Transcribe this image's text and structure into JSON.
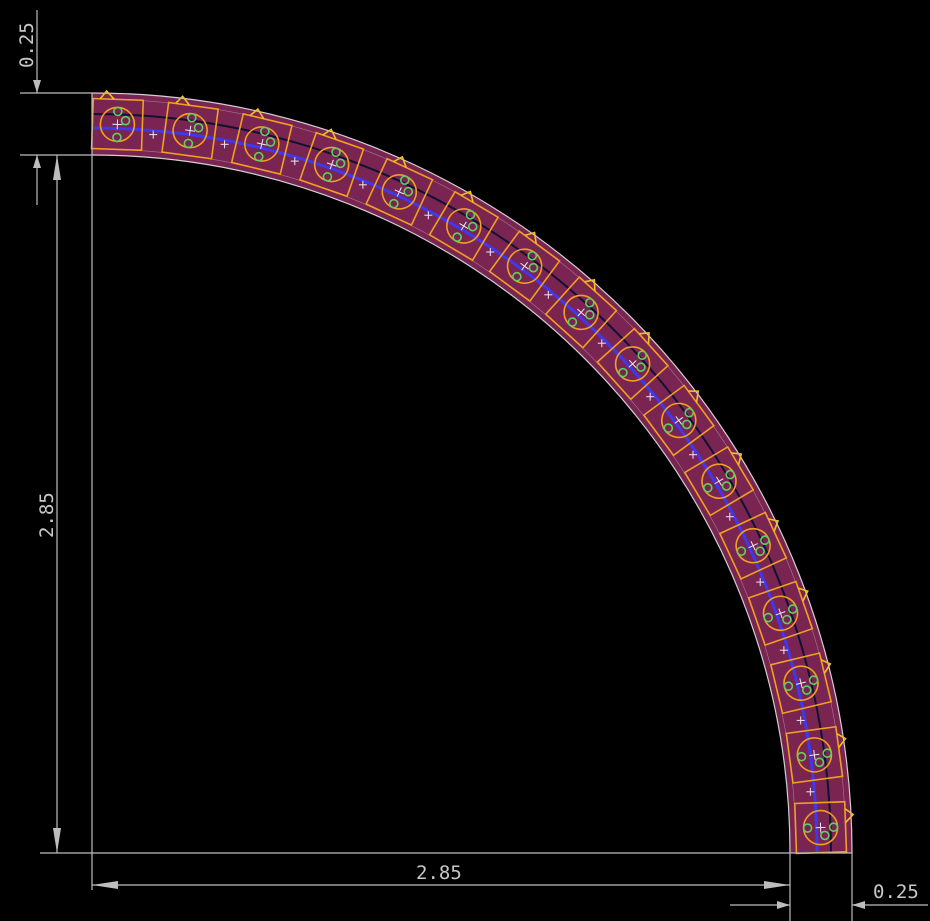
{
  "dimensions": {
    "top_height": {
      "label": "0.25"
    },
    "left_height": {
      "label": "2.85"
    },
    "bottom_width": {
      "label": "2.85"
    },
    "right_width": {
      "label": "0.25"
    }
  },
  "board": {
    "shape": "quarter-ring",
    "led_count": 16,
    "colors": {
      "background": "#000000",
      "board": "#7a2452",
      "outline": "#d0d0d0",
      "component": "#f0a020",
      "pad": "#5fd060",
      "trace": "#3a3aff",
      "dimension": "#bdbdbd"
    }
  }
}
